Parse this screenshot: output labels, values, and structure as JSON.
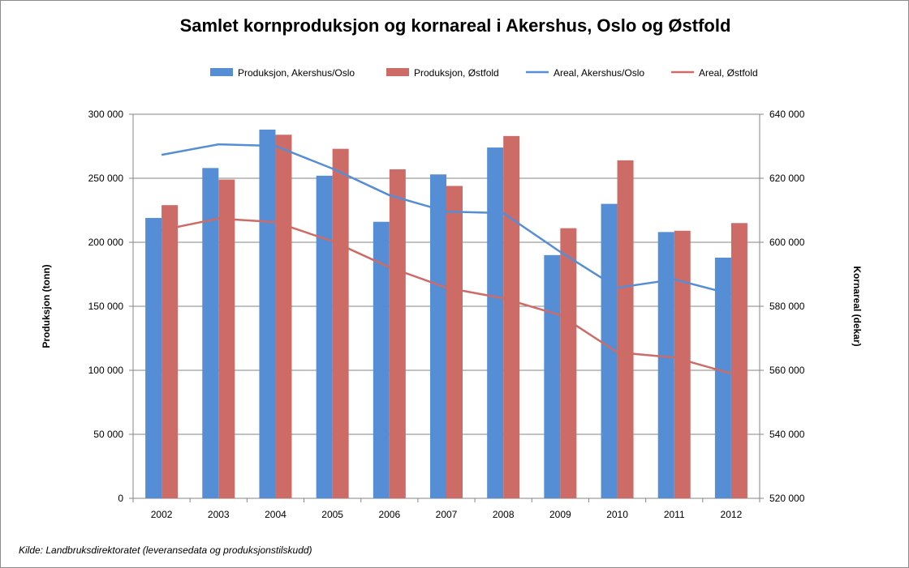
{
  "chart_data": {
    "type": "bar",
    "title": "Samlet kornproduksjon og kornareal i Akershus, Oslo og Østfold",
    "source": "Kilde: Landbruksdirektoratet (leveransedata og produksjonstilskudd)",
    "categories": [
      "2002",
      "2003",
      "2004",
      "2005",
      "2006",
      "2007",
      "2008",
      "2009",
      "2010",
      "2011",
      "2012"
    ],
    "ylabel": "Produksjon (tonn)",
    "y2label": "Kornareal (dekar)",
    "ylim": [
      0,
      300000
    ],
    "y2lim": [
      520000,
      640000
    ],
    "yticks": [
      "0",
      "50 000",
      "100 000",
      "150 000",
      "200 000",
      "250 000",
      "300 000"
    ],
    "y2ticks": [
      "520 000",
      "540 000",
      "560 000",
      "580 000",
      "600 000",
      "620 000",
      "640 000"
    ],
    "grid": true,
    "legend_position": "top",
    "series": [
      {
        "name": "Produksjon, Akershus/Oslo",
        "kind": "bar",
        "axis": "left",
        "color": "#558ED5",
        "values": [
          219000,
          258000,
          288000,
          252000,
          216000,
          253000,
          274000,
          190000,
          230000,
          208000,
          188000
        ]
      },
      {
        "name": "Produksjon, Østfold",
        "kind": "bar",
        "axis": "left",
        "color": "#CD6B67",
        "values": [
          229000,
          249000,
          284000,
          273000,
          257000,
          244000,
          283000,
          211000,
          264000,
          209000,
          215000
        ]
      },
      {
        "name": "Areal, Akershus/Oslo",
        "kind": "line",
        "axis": "right",
        "color": "#558ED5",
        "values": [
          627300,
          630600,
          630100,
          623000,
          614700,
          609600,
          609100,
          597000,
          585800,
          588400,
          583800
        ]
      },
      {
        "name": "Areal, Østfold",
        "kind": "line",
        "axis": "right",
        "color": "#CD6B67",
        "values": [
          603800,
          607400,
          606300,
          600300,
          592200,
          585800,
          582500,
          577200,
          565600,
          564000,
          559000
        ]
      }
    ]
  }
}
